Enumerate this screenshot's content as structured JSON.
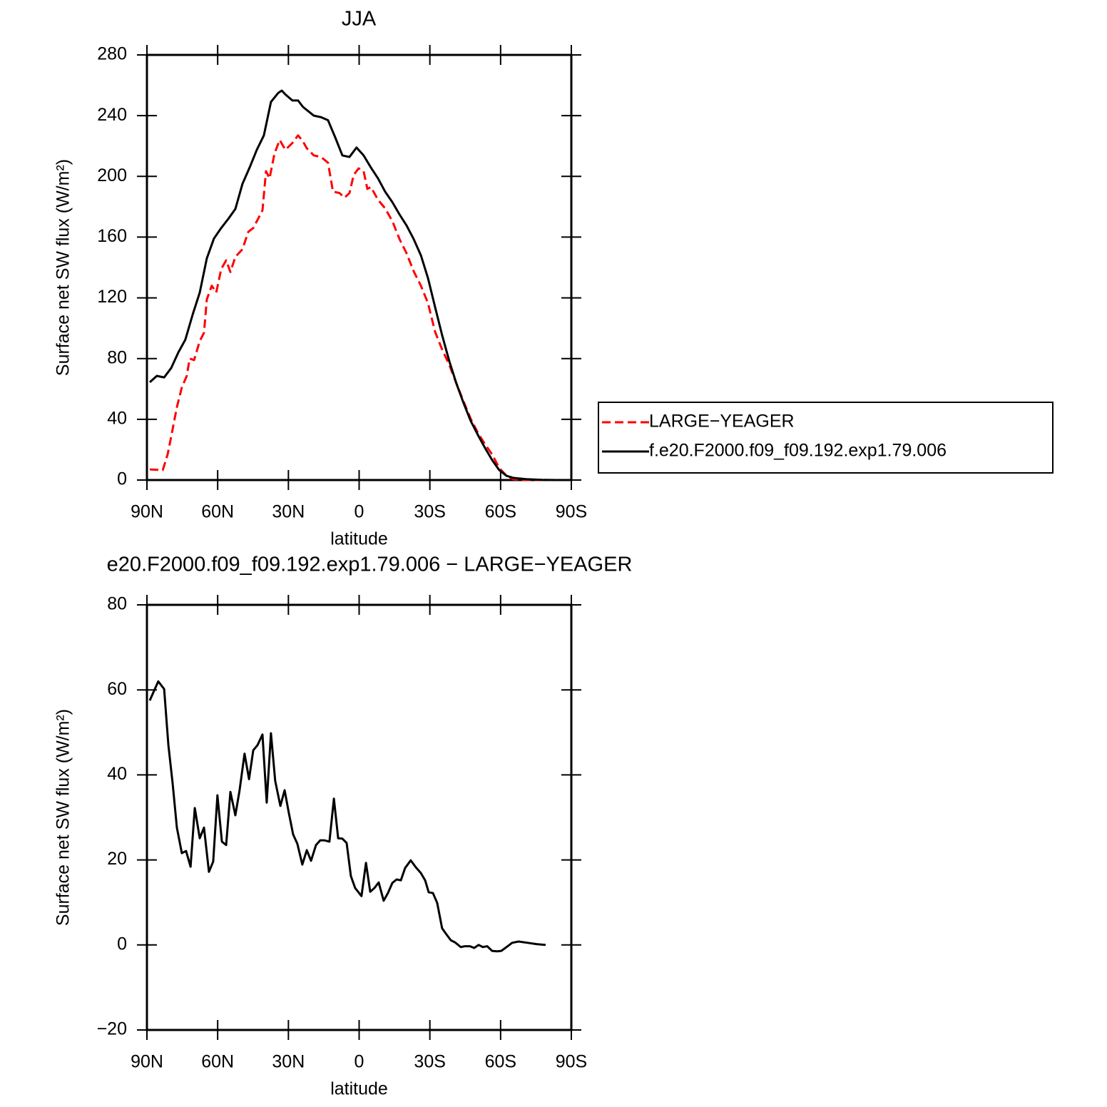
{
  "chart_data": [
    {
      "type": "line",
      "title": "JJA",
      "x_label": "latitude",
      "y_label": "Surface net SW flux (W/m²)",
      "xlim": [
        90,
        -90
      ],
      "xticks": [
        {
          "value": 90,
          "label": "90N"
        },
        {
          "value": 60,
          "label": "60N"
        },
        {
          "value": 30,
          "label": "30N"
        },
        0,
        {
          "value": -30,
          "label": "30S"
        },
        {
          "value": -60,
          "label": "60S"
        },
        {
          "value": -90,
          "label": "90S"
        }
      ],
      "ylim": [
        0,
        280
      ],
      "yticks": [
        0,
        40,
        80,
        120,
        160,
        200,
        240,
        280
      ],
      "legend": "right",
      "series": [
        {
          "name": "LARGE−YEAGER",
          "color": "#ff0000",
          "dashed": true,
          "x": [
            88.8,
            83.3,
            81.2,
            79.7,
            77.3,
            75.2,
            73.1,
            71.9,
            70.0,
            67.6,
            65.8,
            64.6,
            62.5,
            60.6,
            58.5,
            56.4,
            54.6,
            52.5,
            49.5,
            47.0,
            44.9,
            41.0,
            39.5,
            38.0,
            35.9,
            33.7,
            31.3,
            28.3,
            25.9,
            23.8,
            22.2,
            19.2,
            16.2,
            13.2,
            11.1,
            8.3,
            6.2,
            4.1,
            2.3,
            0.2,
            -1.9,
            -3.5,
            -5.0,
            -8.0,
            -11.0,
            -14.1,
            -17.1,
            -20.1,
            -23.1,
            -26.2,
            -29.2,
            -32.2,
            -35.2,
            -38.3,
            -41.3,
            -44.3,
            -47.3,
            -50.4,
            -53.4,
            -56.4,
            -59.4,
            -62.5,
            -65.5,
            -71.5,
            -83.6
          ],
          "values": [
            7,
            6.5,
            17,
            28.7,
            48,
            61,
            68.6,
            80,
            79,
            91.6,
            97,
            119,
            128,
            123.5,
            139,
            144.7,
            137,
            147,
            152,
            163.5,
            166,
            177.6,
            203.4,
            198.7,
            215,
            224,
            217.5,
            222,
            227,
            223,
            218.5,
            213.8,
            212.8,
            209,
            190,
            189,
            186,
            189,
            201,
            205.3,
            203.4,
            191.7,
            193,
            184.6,
            179,
            170.5,
            158.8,
            149.4,
            137.6,
            128,
            116.5,
            97.7,
            86,
            75.6,
            63.4,
            51.7,
            40.4,
            31,
            23.5,
            16.9,
            8,
            2.8,
            0.5,
            0,
            0
          ]
        },
        {
          "name": "f.e20.F2000.f09_f09.192.exp1.79.006",
          "color": "#000000",
          "dashed": false,
          "x": [
            88.8,
            85.8,
            82.7,
            79.7,
            76.7,
            73.7,
            70.6,
            67.6,
            64.6,
            61.6,
            58.5,
            55.5,
            52.5,
            49.5,
            46.4,
            43.4,
            40.4,
            37.4,
            34.3,
            32.8,
            31.3,
            28.3,
            25.9,
            23.8,
            19.2,
            16.2,
            13.2,
            10.1,
            7.1,
            4.1,
            1.1,
            -1.9,
            -5.0,
            -8.0,
            -11.0,
            -14.1,
            -17.1,
            -20.1,
            -23.1,
            -26.2,
            -29.2,
            -32.2,
            -35.2,
            -38.3,
            -41.3,
            -44.3,
            -47.3,
            -50.4,
            -53.4,
            -56.4,
            -59.4,
            -62.5,
            -65.5,
            -71.5,
            -77.6,
            -83.6
          ],
          "values": [
            64.4,
            68.6,
            67.6,
            73.8,
            84,
            92.5,
            109,
            123.5,
            146,
            159,
            166,
            172,
            178.5,
            195,
            206,
            217.5,
            227,
            249,
            255,
            256.5,
            254,
            250,
            250,
            245.7,
            240,
            239,
            237,
            225.5,
            213.8,
            212.8,
            219,
            213.8,
            205.8,
            198.7,
            190,
            183,
            175,
            167.7,
            158.8,
            148,
            133,
            114,
            95.4,
            78,
            63.4,
            50.7,
            39,
            29.6,
            21.1,
            13.2,
            6.6,
            2.8,
            1.4,
            0.5,
            0.1,
            0
          ]
        }
      ]
    },
    {
      "type": "line",
      "title": "e20.F2000.f09_f09.192.exp1.79.006 − LARGE−YEAGER",
      "x_label": "latitude",
      "y_label": "Surface net SW flux (W/m²)",
      "xlim": [
        90,
        -90
      ],
      "xticks": [
        {
          "value": 90,
          "label": "90N"
        },
        {
          "value": 60,
          "label": "60N"
        },
        {
          "value": 30,
          "label": "30N"
        },
        0,
        {
          "value": -30,
          "label": "30S"
        },
        {
          "value": -60,
          "label": "60S"
        },
        {
          "value": -90,
          "label": "90S"
        }
      ],
      "ylim": [
        -20,
        80
      ],
      "yticks": [
        {
          "value": -20,
          "label": "−20"
        },
        0,
        20,
        40,
        60,
        80
      ],
      "series": [
        {
          "color": "#000000",
          "dashed": false,
          "x": [
            88.8,
            85.2,
            82.7,
            80.9,
            79.1,
            77.3,
            75.2,
            73.4,
            71.5,
            69.7,
            67.6,
            65.8,
            63.7,
            61.9,
            60.1,
            58.2,
            56.4,
            54.6,
            52.5,
            50.7,
            48.6,
            46.7,
            44.9,
            43.1,
            41.0,
            39.2,
            37.4,
            35.6,
            33.4,
            31.6,
            29.8,
            28.0,
            26.2,
            24.1,
            22.2,
            20.4,
            18.3,
            16.5,
            14.7,
            12.6,
            10.7,
            8.9,
            7.1,
            5.3,
            3.5,
            1.7,
            -1.0,
            -2.9,
            -4.7,
            -6.5,
            -8.3,
            -10.4,
            -12.2,
            -14.1,
            -15.9,
            -17.7,
            -19.5,
            -21.9,
            -24.0,
            -26.2,
            -28.0,
            -29.5,
            -31.3,
            -33.1,
            -35.2,
            -37.0,
            -38.9,
            -40.7,
            -43.1,
            -44.9,
            -47.0,
            -48.8,
            -50.7,
            -52.5,
            -54.3,
            -56.4,
            -58.5,
            -60.3,
            -62.5,
            -64.9,
            -67.6,
            -71.5,
            -75.2,
            -79.1
          ],
          "values": [
            57.5,
            62,
            60.2,
            47,
            38,
            27.6,
            21.6,
            22.1,
            18.4,
            32.2,
            25.1,
            27.6,
            17.2,
            19.6,
            35.2,
            24.3,
            23.5,
            36,
            30.5,
            36.4,
            45,
            39,
            45.8,
            47,
            49.5,
            33.5,
            49.8,
            38.6,
            32.7,
            36.4,
            31,
            26,
            23.8,
            18.9,
            22.3,
            19.8,
            23.5,
            24.6,
            24.6,
            24.3,
            34.4,
            25.1,
            25,
            24,
            16.2,
            13.4,
            11.5,
            19.3,
            12.5,
            13.4,
            14.7,
            10.4,
            12.2,
            14.6,
            15.4,
            15.2,
            18.1,
            19.9,
            18.3,
            16.9,
            15.2,
            12.4,
            12.2,
            9.9,
            3.9,
            2.5,
            1.1,
            0.6,
            -0.5,
            -0.3,
            -0.3,
            -0.7,
            0,
            -0.5,
            -0.3,
            -1.4,
            -1.5,
            -1.4,
            -0.5,
            0.5,
            0.8,
            0.5,
            0.2,
            0
          ]
        }
      ]
    }
  ]
}
